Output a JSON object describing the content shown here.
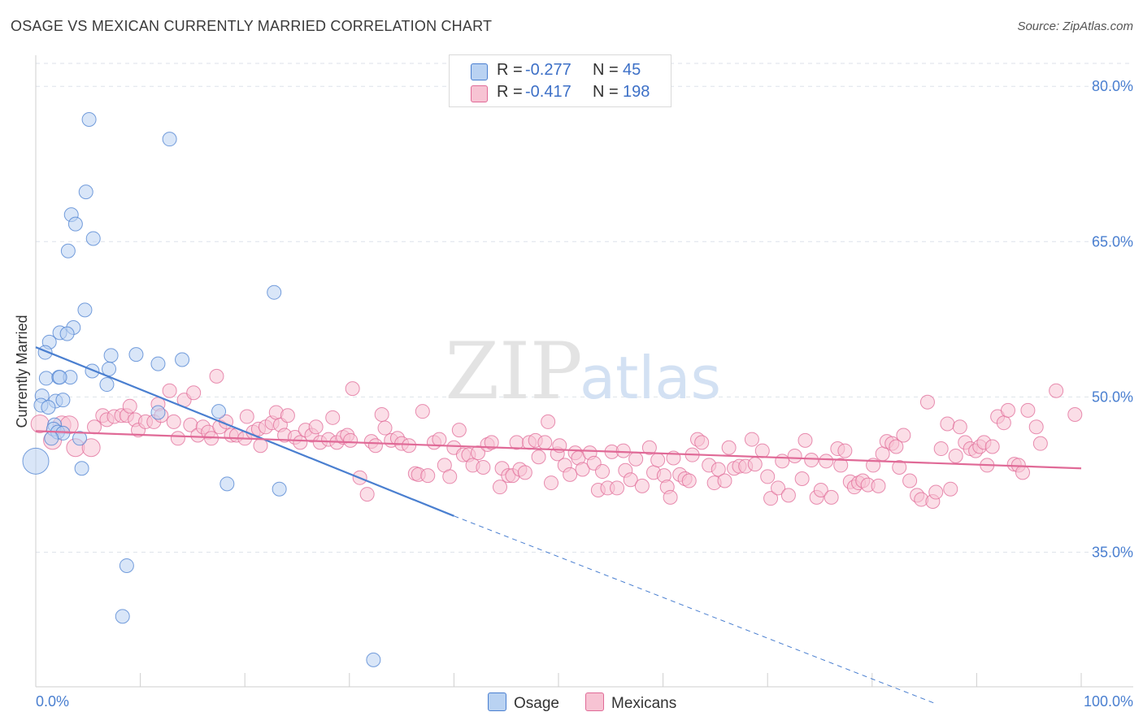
{
  "title": "OSAGE VS MEXICAN CURRENTLY MARRIED CORRELATION CHART",
  "source": "Source: ZipAtlas.com",
  "watermark": {
    "zip": "ZIP",
    "atlas": "atlas"
  },
  "colors": {
    "osage": "#4a7fd0",
    "osage_fill": "#b9d2f2",
    "mexicans": "#e06a97",
    "mexicans_fill": "#f7c3d3",
    "grid": "#dde2ea",
    "tick_text": "#4a7fd0"
  },
  "legend": {
    "osage": {
      "r_label": "R =",
      "r_value": "-0.277",
      "n_label": "N =",
      "n_value": "45"
    },
    "mexicans": {
      "r_label": "R =",
      "r_value": "-0.417",
      "n_label": "N =",
      "n_value": "198"
    }
  },
  "bottom_legend": {
    "osage": "Osage",
    "mexicans": "Mexicans"
  },
  "chart_data": {
    "type": "scatter",
    "title": "OSAGE VS MEXICAN CURRENTLY MARRIED CORRELATION CHART",
    "xlabel": "",
    "ylabel": "Currently Married",
    "xlim": [
      0,
      100
    ],
    "ylim": [
      22,
      83
    ],
    "x_tick_labels": {
      "min": "0.0%",
      "max": "100.0%"
    },
    "y_ticks": [
      {
        "value": 35,
        "label": "35.0%"
      },
      {
        "value": 50,
        "label": "50.0%"
      },
      {
        "value": 65,
        "label": "65.0%"
      },
      {
        "value": 80,
        "label": "80.0%"
      }
    ],
    "grid": true,
    "series": [
      {
        "name": "Osage",
        "points": [
          [
            5.1,
            76.8
          ],
          [
            12.8,
            74.9
          ],
          [
            4.8,
            69.8
          ],
          [
            3.4,
            67.6
          ],
          [
            3.8,
            66.7
          ],
          [
            5.5,
            65.3
          ],
          [
            3.1,
            64.1
          ],
          [
            22.8,
            60.1
          ],
          [
            4.7,
            58.4
          ],
          [
            3.6,
            56.7
          ],
          [
            2.3,
            56.2
          ],
          [
            3.0,
            56.1
          ],
          [
            1.3,
            55.3
          ],
          [
            0.9,
            54.3
          ],
          [
            7.2,
            54.0
          ],
          [
            9.6,
            54.1
          ],
          [
            11.7,
            53.2
          ],
          [
            14.0,
            53.6
          ],
          [
            5.4,
            52.5
          ],
          [
            7.0,
            52.7
          ],
          [
            1.0,
            51.8
          ],
          [
            2.2,
            51.9
          ],
          [
            3.3,
            51.9
          ],
          [
            2.3,
            51.9
          ],
          [
            6.8,
            51.2
          ],
          [
            0.6,
            50.1
          ],
          [
            1.9,
            49.6
          ],
          [
            2.6,
            49.7
          ],
          [
            0.5,
            49.2
          ],
          [
            1.2,
            49.0
          ],
          [
            17.5,
            48.6
          ],
          [
            11.7,
            48.5
          ],
          [
            1.8,
            47.3
          ],
          [
            1.7,
            46.9
          ],
          [
            2.1,
            46.6
          ],
          [
            2.6,
            46.5
          ],
          [
            4.2,
            46.0
          ],
          [
            1.5,
            46.0
          ],
          [
            0.0,
            43.8
          ],
          [
            4.4,
            43.1
          ],
          [
            18.3,
            41.6
          ],
          [
            23.3,
            41.1
          ],
          [
            8.7,
            33.7
          ],
          [
            8.3,
            28.8
          ],
          [
            32.3,
            24.6
          ]
        ],
        "trend": {
          "x": [
            0,
            40
          ],
          "y": [
            54.8,
            38.5
          ],
          "extended_to": [
            86,
            20.4
          ]
        }
      },
      {
        "name": "Mexicans",
        "points": [
          [
            0.4,
            47.4
          ],
          [
            1.6,
            45.8
          ],
          [
            2.5,
            47.3
          ],
          [
            3.2,
            47.3
          ],
          [
            3.8,
            45.1
          ],
          [
            5.3,
            45.1
          ],
          [
            5.6,
            47.1
          ],
          [
            6.4,
            48.2
          ],
          [
            6.8,
            47.8
          ],
          [
            7.5,
            48.1
          ],
          [
            8.2,
            48.2
          ],
          [
            8.7,
            48.2
          ],
          [
            9.0,
            49.1
          ],
          [
            9.5,
            47.8
          ],
          [
            9.8,
            46.8
          ],
          [
            10.5,
            47.6
          ],
          [
            11.3,
            47.6
          ],
          [
            11.7,
            49.3
          ],
          [
            12.0,
            48.2
          ],
          [
            12.8,
            50.6
          ],
          [
            13.2,
            47.6
          ],
          [
            13.6,
            46.0
          ],
          [
            14.2,
            49.7
          ],
          [
            14.8,
            47.3
          ],
          [
            15.1,
            50.4
          ],
          [
            15.5,
            46.3
          ],
          [
            16.0,
            47.1
          ],
          [
            16.5,
            46.6
          ],
          [
            16.8,
            46.0
          ],
          [
            17.3,
            52.0
          ],
          [
            17.6,
            47.1
          ],
          [
            18.2,
            47.6
          ],
          [
            18.7,
            46.3
          ],
          [
            19.2,
            46.3
          ],
          [
            20.0,
            46.0
          ],
          [
            20.2,
            48.1
          ],
          [
            20.8,
            46.6
          ],
          [
            21.3,
            46.9
          ],
          [
            21.5,
            45.3
          ],
          [
            22.0,
            47.1
          ],
          [
            22.6,
            47.5
          ],
          [
            23.0,
            48.5
          ],
          [
            23.4,
            47.3
          ],
          [
            23.8,
            46.3
          ],
          [
            24.1,
            48.2
          ],
          [
            24.8,
            46.1
          ],
          [
            25.3,
            45.6
          ],
          [
            25.8,
            46.8
          ],
          [
            26.4,
            46.3
          ],
          [
            26.8,
            47.1
          ],
          [
            27.2,
            45.6
          ],
          [
            28.0,
            45.9
          ],
          [
            28.4,
            48.0
          ],
          [
            28.8,
            45.6
          ],
          [
            29.4,
            46.1
          ],
          [
            29.8,
            46.3
          ],
          [
            30.1,
            45.8
          ],
          [
            30.3,
            50.8
          ],
          [
            31.0,
            42.2
          ],
          [
            31.7,
            40.6
          ],
          [
            32.1,
            45.7
          ],
          [
            32.5,
            45.3
          ],
          [
            33.1,
            48.3
          ],
          [
            33.4,
            47.0
          ],
          [
            34.0,
            45.8
          ],
          [
            34.6,
            46.0
          ],
          [
            35.0,
            45.5
          ],
          [
            35.7,
            45.3
          ],
          [
            36.3,
            42.6
          ],
          [
            36.6,
            42.5
          ],
          [
            37.0,
            48.6
          ],
          [
            37.5,
            42.4
          ],
          [
            38.1,
            45.6
          ],
          [
            38.6,
            45.9
          ],
          [
            39.1,
            43.4
          ],
          [
            39.6,
            42.3
          ],
          [
            40.0,
            45.1
          ],
          [
            40.5,
            46.8
          ],
          [
            40.9,
            44.4
          ],
          [
            41.4,
            44.4
          ],
          [
            41.8,
            43.4
          ],
          [
            42.3,
            44.6
          ],
          [
            42.8,
            43.2
          ],
          [
            43.2,
            45.4
          ],
          [
            43.6,
            45.6
          ],
          [
            44.4,
            41.3
          ],
          [
            44.6,
            43.1
          ],
          [
            45.2,
            42.4
          ],
          [
            45.6,
            42.4
          ],
          [
            46.0,
            45.6
          ],
          [
            46.3,
            43.0
          ],
          [
            46.8,
            42.7
          ],
          [
            47.2,
            45.6
          ],
          [
            47.8,
            45.8
          ],
          [
            48.1,
            44.2
          ],
          [
            48.7,
            45.6
          ],
          [
            49.0,
            47.6
          ],
          [
            49.3,
            41.7
          ],
          [
            49.9,
            44.5
          ],
          [
            50.1,
            45.3
          ],
          [
            50.6,
            43.4
          ],
          [
            51.1,
            42.5
          ],
          [
            51.6,
            44.6
          ],
          [
            51.9,
            44.1
          ],
          [
            52.3,
            43.0
          ],
          [
            53.0,
            44.6
          ],
          [
            53.4,
            43.6
          ],
          [
            53.8,
            41.0
          ],
          [
            54.2,
            42.8
          ],
          [
            54.7,
            41.2
          ],
          [
            55.1,
            44.7
          ],
          [
            55.6,
            41.2
          ],
          [
            56.2,
            44.8
          ],
          [
            56.4,
            42.9
          ],
          [
            56.9,
            42.0
          ],
          [
            57.4,
            44.0
          ],
          [
            58.0,
            41.4
          ],
          [
            58.7,
            45.1
          ],
          [
            59.1,
            42.7
          ],
          [
            59.5,
            43.9
          ],
          [
            60.1,
            42.4
          ],
          [
            60.4,
            41.3
          ],
          [
            60.7,
            40.3
          ],
          [
            61.0,
            44.1
          ],
          [
            61.6,
            42.5
          ],
          [
            62.1,
            42.1
          ],
          [
            62.5,
            41.9
          ],
          [
            62.8,
            44.4
          ],
          [
            63.3,
            45.9
          ],
          [
            63.7,
            45.6
          ],
          [
            64.4,
            43.4
          ],
          [
            64.9,
            41.7
          ],
          [
            65.3,
            43.0
          ],
          [
            65.9,
            41.9
          ],
          [
            66.3,
            45.1
          ],
          [
            66.8,
            43.1
          ],
          [
            67.3,
            43.3
          ],
          [
            67.9,
            43.3
          ],
          [
            68.5,
            45.9
          ],
          [
            68.8,
            43.5
          ],
          [
            69.5,
            44.8
          ],
          [
            70.0,
            42.3
          ],
          [
            70.3,
            40.2
          ],
          [
            71.0,
            41.2
          ],
          [
            71.4,
            43.8
          ],
          [
            72.0,
            40.5
          ],
          [
            72.6,
            44.3
          ],
          [
            73.3,
            42.1
          ],
          [
            73.6,
            45.8
          ],
          [
            74.2,
            43.9
          ],
          [
            74.7,
            40.3
          ],
          [
            75.1,
            41.0
          ],
          [
            75.6,
            43.8
          ],
          [
            76.1,
            40.3
          ],
          [
            76.7,
            45.0
          ],
          [
            77.0,
            43.4
          ],
          [
            77.4,
            44.8
          ],
          [
            77.9,
            41.8
          ],
          [
            78.3,
            41.3
          ],
          [
            78.7,
            41.7
          ],
          [
            79.1,
            41.9
          ],
          [
            79.6,
            41.5
          ],
          [
            80.1,
            43.4
          ],
          [
            80.6,
            41.4
          ],
          [
            81.0,
            44.5
          ],
          [
            81.4,
            45.7
          ],
          [
            81.9,
            45.5
          ],
          [
            82.3,
            45.2
          ],
          [
            82.6,
            43.2
          ],
          [
            83.0,
            46.3
          ],
          [
            83.6,
            41.9
          ],
          [
            84.3,
            40.5
          ],
          [
            84.7,
            40.1
          ],
          [
            85.3,
            49.5
          ],
          [
            85.8,
            39.9
          ],
          [
            86.1,
            40.8
          ],
          [
            86.6,
            45.0
          ],
          [
            87.2,
            47.4
          ],
          [
            87.5,
            41.1
          ],
          [
            88.0,
            44.3
          ],
          [
            88.4,
            47.1
          ],
          [
            88.9,
            45.6
          ],
          [
            89.4,
            45.0
          ],
          [
            89.9,
            44.8
          ],
          [
            90.3,
            45.2
          ],
          [
            90.7,
            45.6
          ],
          [
            91.0,
            43.4
          ],
          [
            91.5,
            45.2
          ],
          [
            92.0,
            48.1
          ],
          [
            92.6,
            47.5
          ],
          [
            93.0,
            48.7
          ],
          [
            93.6,
            43.5
          ],
          [
            94.0,
            43.4
          ],
          [
            94.4,
            42.7
          ],
          [
            94.9,
            48.7
          ],
          [
            95.7,
            47.1
          ],
          [
            96.1,
            45.5
          ],
          [
            97.6,
            50.6
          ],
          [
            99.4,
            48.3
          ]
        ],
        "trend": {
          "x": [
            0,
            100
          ],
          "y": [
            46.7,
            43.1
          ]
        }
      }
    ]
  }
}
